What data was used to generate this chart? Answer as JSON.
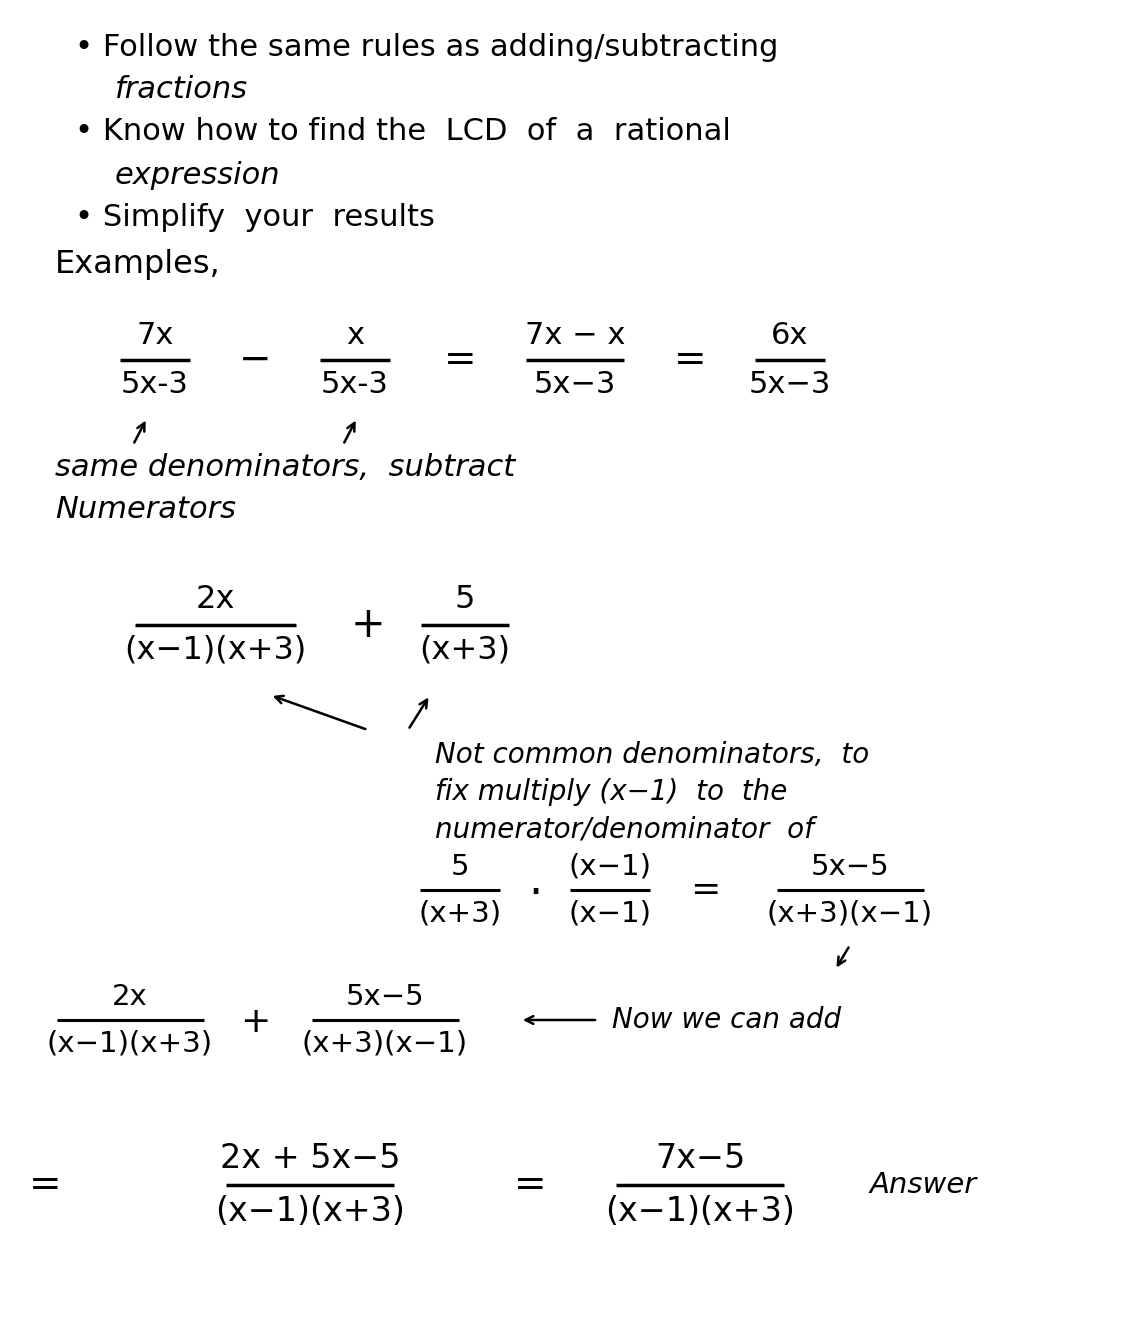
{
  "background_color": "#ffffff",
  "figsize": [
    11.25,
    13.23
  ],
  "dpi": 100,
  "text_color": "#000000",
  "bullet1": "• Follow the same rules as adding/subtracting",
  "bullet1b": "  fractions",
  "bullet2": "• Know how to find the  LCD  of  a  rational",
  "bullet2b": "  expression",
  "bullet3": "• Simplify  your  results",
  "examples": "Examples,"
}
